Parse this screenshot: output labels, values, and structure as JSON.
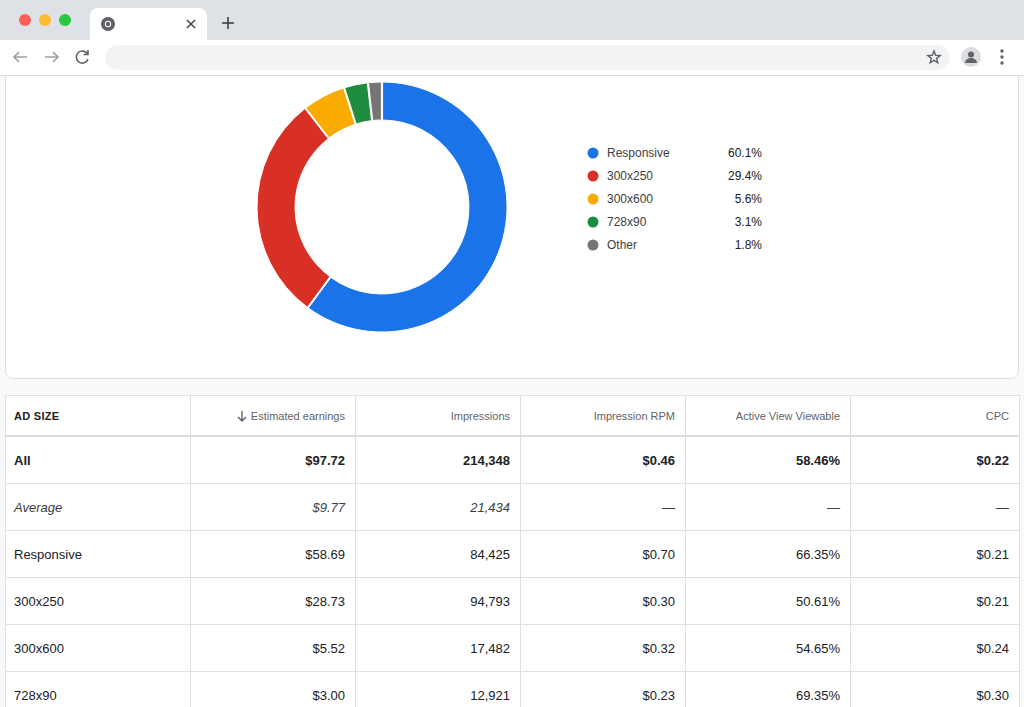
{
  "chart_data": {
    "type": "pie",
    "categories": [
      "Responsive",
      "300x250",
      "300x600",
      "728x90",
      "Other"
    ],
    "values": [
      60.1,
      29.4,
      5.6,
      3.1,
      1.8
    ],
    "value_labels": [
      "60.1%",
      "29.4%",
      "5.6%",
      "3.1%",
      "1.8%"
    ],
    "colors": [
      "#1a73e8",
      "#d93025",
      "#f9ab00",
      "#1e8e3e",
      "#757575"
    ],
    "legend": "right"
  },
  "table": {
    "header": [
      "AD SIZE",
      "Estimated earnings",
      "Impressions",
      "Impression RPM",
      "Active View Viewable",
      "CPC"
    ],
    "rows": [
      [
        "All",
        "$97.72",
        "214,348",
        "$0.46",
        "58.46%",
        "$0.22"
      ],
      [
        "Average",
        "$9.77",
        "21,434",
        "—",
        "—",
        "—"
      ],
      [
        "Responsive",
        "$58.69",
        "84,425",
        "$0.70",
        "66.35%",
        "$0.21"
      ],
      [
        "300x250",
        "$28.73",
        "94,793",
        "$0.30",
        "50.61%",
        "$0.21"
      ],
      [
        "300x600",
        "$5.52",
        "17,482",
        "$0.32",
        "54.65%",
        "$0.24"
      ],
      [
        "728x90",
        "$3.00",
        "12,921",
        "$0.23",
        "69.35%",
        "$0.30"
      ]
    ]
  }
}
